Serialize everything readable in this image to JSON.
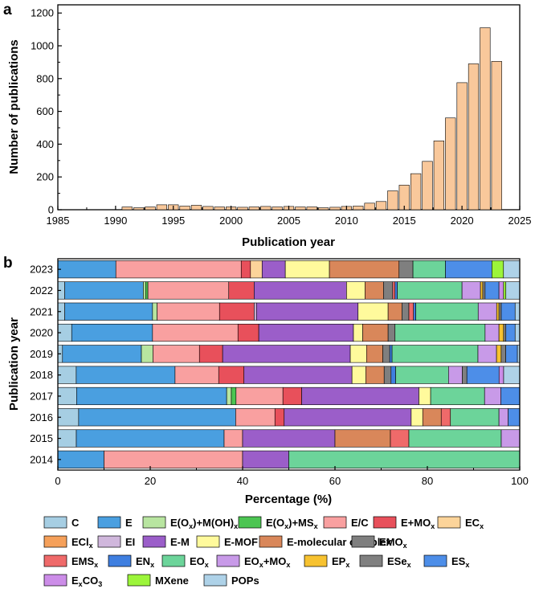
{
  "chart_data": [
    {
      "panel_label": "a",
      "type": "bar",
      "xlabel": "Publication year",
      "ylabel": "Number of publications",
      "xlim": [
        1985,
        2025
      ],
      "ylim": [
        0,
        1250
      ],
      "xticks": [
        1985,
        1990,
        1995,
        2000,
        2005,
        2010,
        2015,
        2020,
        2025
      ],
      "yticks": [
        0,
        200,
        400,
        600,
        800,
        1000,
        1200
      ],
      "bar_color": "#f9c89b",
      "x": [
        1991,
        1992,
        1993,
        1994,
        1995,
        1996,
        1997,
        1998,
        1999,
        2000,
        2001,
        2002,
        2003,
        2004,
        2005,
        2006,
        2007,
        2008,
        2009,
        2010,
        2011,
        2012,
        2013,
        2014,
        2015,
        2016,
        2017,
        2018,
        2019,
        2020,
        2021,
        2022,
        2023
      ],
      "values": [
        17,
        12,
        17,
        30,
        30,
        22,
        27,
        20,
        17,
        17,
        15,
        17,
        20,
        17,
        20,
        17,
        17,
        12,
        15,
        20,
        22,
        40,
        50,
        115,
        150,
        220,
        295,
        420,
        560,
        775,
        890,
        1110,
        905
      ]
    },
    {
      "panel_label": "b",
      "type": "bar",
      "orientation": "horizontal",
      "stacked": true,
      "xlabel": "Percentage (%)",
      "ylabel": "Publication year",
      "xlim": [
        0,
        100
      ],
      "xticks": [
        0,
        20,
        40,
        60,
        80,
        100
      ],
      "categories": [
        "2023",
        "2022",
        "2021",
        "2020",
        "2019",
        "2018",
        "2017",
        "2016",
        "2015",
        "2014"
      ],
      "series": [
        {
          "name": "C",
          "sub": "",
          "color": "#a6cee3",
          "values": [
            0,
            1.5,
            1.5,
            3,
            1,
            4,
            4,
            4.5,
            4,
            0
          ]
        },
        {
          "name": "E",
          "sub": "",
          "color": "#4a9fe0",
          "values": [
            12.5,
            17,
            19,
            17.5,
            17,
            21.5,
            32,
            34,
            32,
            10
          ]
        },
        {
          "name": "E(O",
          "sub": "x",
          "suffix": ")+M(OH)",
          "sub2": "x",
          "color": "#b8e5a0",
          "values": [
            0,
            0.5,
            1,
            0,
            2.5,
            0,
            1,
            0,
            0,
            0
          ]
        },
        {
          "name": "E(O",
          "sub": "x",
          "suffix": ")+MS",
          "sub2": "x",
          "color": "#4cc552",
          "values": [
            0,
            0.5,
            0,
            0,
            0,
            0,
            1,
            0,
            0,
            0
          ]
        },
        {
          "name": "E/C",
          "sub": "",
          "color": "#f9a0a0",
          "values": [
            27,
            17.5,
            13.5,
            18.5,
            10,
            9.5,
            10,
            8.5,
            4,
            30
          ]
        },
        {
          "name": "E+MO",
          "sub": "x",
          "color": "#e8505b",
          "values": [
            2,
            5.5,
            7.5,
            4.5,
            5,
            5.5,
            4,
            2,
            0,
            0
          ]
        },
        {
          "name": "EC",
          "sub": "x",
          "color": "#fcd49a",
          "values": [
            2.5,
            0,
            0,
            0,
            0,
            0,
            0,
            0,
            0,
            0
          ]
        },
        {
          "name": "ECl",
          "sub": "x",
          "color": "#f5a05a",
          "values": [
            0,
            0,
            0,
            0,
            0,
            0,
            0,
            0,
            0,
            0
          ]
        },
        {
          "name": "EI",
          "sub": "",
          "color": "#d0b7dc",
          "values": [
            0,
            0,
            0.5,
            0,
            0,
            0,
            0,
            0,
            0,
            0
          ]
        },
        {
          "name": "E-M",
          "sub": "",
          "color": "#9b5ec9",
          "values": [
            5,
            20,
            22,
            20.5,
            27.5,
            23.5,
            25,
            27.5,
            20,
            10
          ]
        },
        {
          "name": "E-MOF",
          "sub": "",
          "color": "#fffa9c",
          "values": [
            9.5,
            4,
            6.5,
            2,
            3.5,
            3,
            2.5,
            2.5,
            0,
            0
          ]
        },
        {
          "name": "E-molecular complex",
          "sub": "",
          "color": "#d9875a",
          "values": [
            15,
            4,
            3,
            5.5,
            3.5,
            4,
            0,
            4,
            12,
            0
          ]
        },
        {
          "name": "EMO",
          "sub": "x",
          "color": "#7f7f7f",
          "values": [
            3,
            2,
            1.5,
            1.5,
            1.5,
            1.5,
            0,
            0,
            0,
            0
          ]
        },
        {
          "name": "EMS",
          "sub": "x",
          "color": "#ef6a6a",
          "values": [
            0,
            0.5,
            1,
            0,
            0,
            0,
            0,
            2,
            4,
            0
          ]
        },
        {
          "name": "EN",
          "sub": "x",
          "color": "#3f7fe0",
          "values": [
            0,
            0.5,
            0.5,
            0,
            0.5,
            1,
            0,
            0,
            0,
            0
          ]
        },
        {
          "name": "EO",
          "sub": "x",
          "color": "#6cd49a",
          "values": [
            7,
            14,
            13.5,
            19.5,
            18.5,
            11.5,
            11.5,
            10.5,
            20,
            50
          ]
        },
        {
          "name": "EO",
          "sub": "x",
          "suffix": "+MO",
          "sub2": "x",
          "color": "#c89ae8",
          "values": [
            0,
            4,
            4,
            3,
            4,
            3,
            3.5,
            2,
            4,
            0
          ]
        },
        {
          "name": "EP",
          "sub": "x",
          "color": "#f7c230",
          "values": [
            0,
            0.5,
            0.5,
            1,
            1,
            0,
            0,
            0,
            0,
            0
          ]
        },
        {
          "name": "ESe",
          "sub": "x",
          "color": "#808080",
          "values": [
            0,
            0.5,
            0.5,
            0.5,
            1,
            1,
            0,
            0,
            0,
            0
          ]
        },
        {
          "name": "ES",
          "sub": "x",
          "color": "#4d8ee8",
          "values": [
            10,
            3,
            3,
            2,
            2.5,
            7,
            4,
            2.5,
            0,
            0
          ]
        },
        {
          "name": "E",
          "sub": "x",
          "suffix": "CO",
          "sub2": "3",
          "color": "#cc8de8",
          "values": [
            0,
            1,
            0,
            0,
            0,
            1,
            0,
            0,
            0,
            0
          ]
        },
        {
          "name": "MXene",
          "sub": "",
          "color": "#9cf53a",
          "values": [
            2.5,
            0.5,
            0,
            0,
            0,
            0,
            0,
            0,
            0,
            0
          ]
        },
        {
          "name": "POPs",
          "sub": "",
          "color": "#aed2e8",
          "values": [
            3.5,
            3,
            1,
            1,
            0.5,
            3.5,
            0,
            0,
            0,
            0
          ]
        }
      ]
    }
  ]
}
